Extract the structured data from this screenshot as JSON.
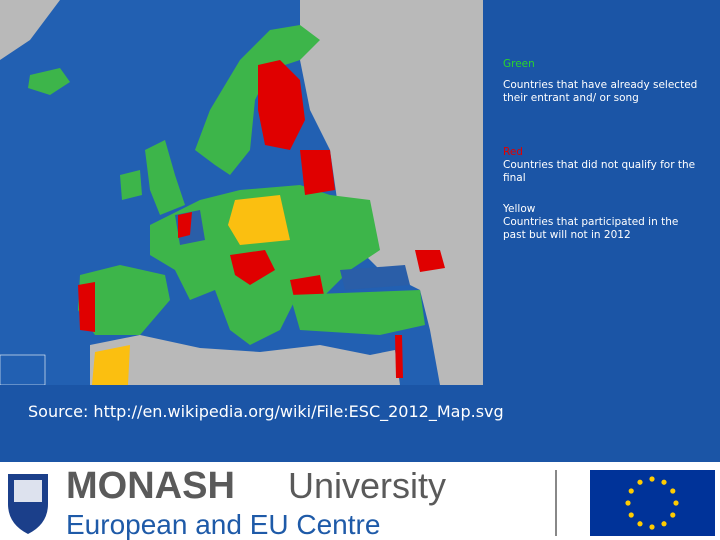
{
  "legend": [
    {
      "label": "Green",
      "description": "Countries that have already selected their entrant and/ or song"
    },
    {
      "label": "Red",
      "description": "Countries that did not qualify for the final"
    },
    {
      "label": "Yellow",
      "description": "Countries that participated in the past but will not in 2012"
    }
  ],
  "source": "Source: http://en.wikipedia.org/wiki/File:ESC_2012_Map.svg",
  "footer": {
    "brand": "MONASH",
    "brand_suffix": "University",
    "centre": "European and EU Centre"
  }
}
